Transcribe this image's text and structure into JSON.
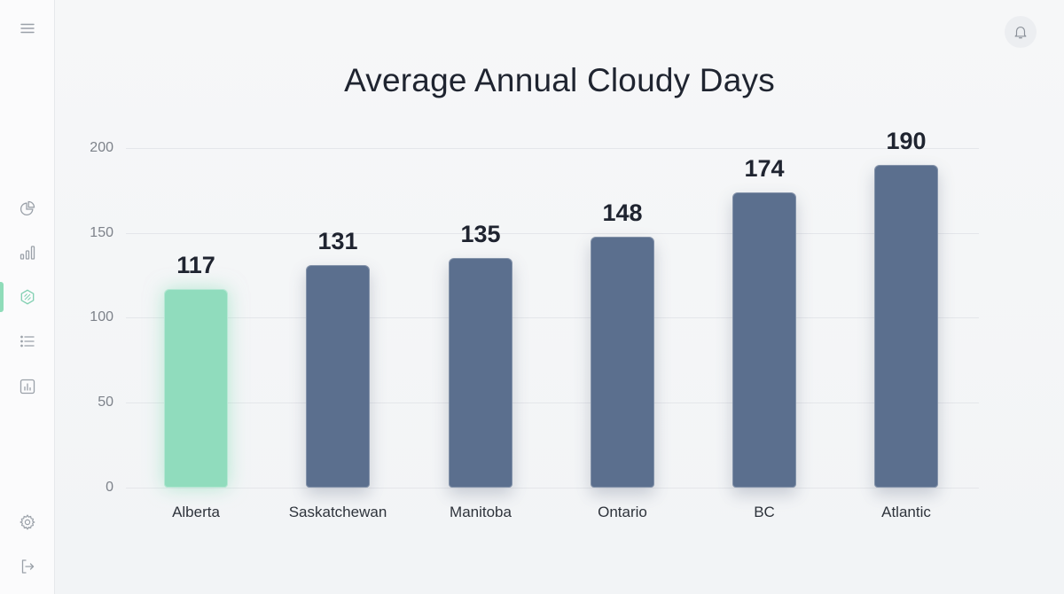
{
  "sidebar": {
    "items": [
      {
        "name": "menu",
        "icon": "hamburger-menu-icon"
      },
      {
        "name": "pie-chart",
        "icon": "pie-chart-icon"
      },
      {
        "name": "bar-chart",
        "icon": "bar-chart-icon"
      },
      {
        "name": "dataset",
        "icon": "hexagon-pattern-icon",
        "active": true
      },
      {
        "name": "list",
        "icon": "list-icon"
      },
      {
        "name": "report",
        "icon": "chart-report-icon"
      },
      {
        "name": "settings",
        "icon": "gear-icon"
      },
      {
        "name": "logout",
        "icon": "logout-icon"
      }
    ],
    "active_color": "#8fdcb9"
  },
  "header": {
    "notification_icon": "bell-icon"
  },
  "colors": {
    "bar_default": "#5b6f8e",
    "bar_highlight": "#90dcbd",
    "background": "#f5f6f8",
    "title_text": "#1f2430"
  },
  "chart_data": {
    "type": "bar",
    "title": "Average Annual Cloudy Days",
    "xlabel": "",
    "ylabel": "",
    "categories": [
      "Alberta",
      "Saskatchewan",
      "Manitoba",
      "Ontario",
      "BC",
      "Atlantic"
    ],
    "values": [
      117,
      131,
      135,
      148,
      174,
      190
    ],
    "value_labels": [
      "117",
      "131",
      "135",
      "148",
      "174",
      "190"
    ],
    "highlighted_category": "Alberta",
    "ylim": [
      0,
      200
    ],
    "yticks": [
      "0",
      "50",
      "100",
      "150",
      "200"
    ],
    "grid": true,
    "legend": null
  }
}
